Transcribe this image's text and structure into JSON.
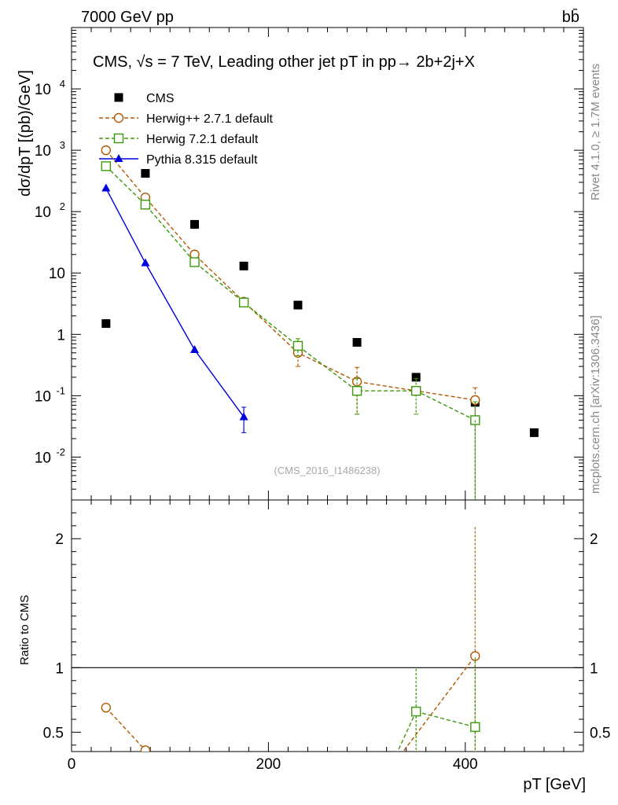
{
  "header": {
    "left": "7000 GeV pp",
    "right": "bb̄"
  },
  "side_text": {
    "rivet": "Rivet 4.1.0, ≥ 1.7M events",
    "site": "mcplots.cern.ch [arXiv:1306.3436]"
  },
  "chart_data": {
    "type": "scatter",
    "title": "CMS, √s = 7 TeV, Leading other jet pT in pp→  2b+2j+X",
    "analysis": "(CMS_2016_I1486238)",
    "xlabel": "pT [GeV]",
    "ylabel": "dσ/dpT [(pb)/GeV]",
    "ratio_ylabel": "Ratio to CMS",
    "xlim": [
      0,
      520
    ],
    "ylim": [
      0.002,
      100000
    ],
    "yscale": "log",
    "ratio_ylim": [
      0.35,
      2.3
    ],
    "x_ticks": [
      "0",
      "200",
      "400"
    ],
    "y_ticks": [
      "10^-2",
      "10^-1",
      "1",
      "10",
      "10^2",
      "10^3",
      "10^4"
    ],
    "ratio_ticks": [
      "0.5",
      "1",
      "2"
    ],
    "series": [
      {
        "name": "CMS",
        "style": "data",
        "color": "#000000",
        "x": [
          35,
          75,
          125,
          175,
          230,
          290,
          350,
          410,
          470
        ],
        "y": [
          1.5,
          420,
          62,
          13,
          3.0,
          0.74,
          0.2,
          0.078,
          0.025
        ]
      },
      {
        "name": "Herwig++ 2.7.1 default",
        "style": "circle-dashed",
        "color": "#b35900",
        "x": [
          35,
          75,
          125,
          175,
          230,
          290,
          350,
          410
        ],
        "y": [
          1000,
          170,
          20,
          3.4,
          0.5,
          0.17,
          0.12,
          0.085
        ],
        "err": [
          0,
          0,
          0,
          0,
          0.2,
          0.12,
          0,
          0.05
        ],
        "ratio": [
          0.69,
          0.36,
          null,
          null,
          null,
          null,
          null,
          1.09
        ],
        "ratio_err": [
          0,
          0,
          0,
          0,
          0,
          0,
          0,
          1.0
        ]
      },
      {
        "name": "Herwig 7.2.1 default",
        "style": "square-dashed",
        "color": "#3a9a0a",
        "x": [
          35,
          75,
          125,
          175,
          230,
          290,
          350,
          410
        ],
        "y": [
          550,
          130,
          15,
          3.3,
          0.65,
          0.12,
          0.12,
          0.04
        ],
        "err": [
          0,
          0,
          0,
          0,
          0.2,
          0.07,
          0.07,
          0.04
        ],
        "ratio": [
          null,
          null,
          null,
          null,
          null,
          null,
          0.66,
          0.54
        ],
        "ratio_err": [
          0,
          0,
          0,
          0,
          0,
          0,
          0.33,
          0.54
        ]
      },
      {
        "name": "Pythia 8.315 default",
        "style": "triangle-solid",
        "color": "#0000dd",
        "x": [
          35,
          75,
          125,
          175
        ],
        "y": [
          240,
          14.5,
          0.56,
          0.045
        ],
        "err": [
          0,
          0,
          0,
          0.02
        ],
        "ratio": [
          null,
          null,
          null,
          null
        ],
        "ratio_err": [
          0,
          0,
          0,
          0
        ]
      }
    ]
  }
}
